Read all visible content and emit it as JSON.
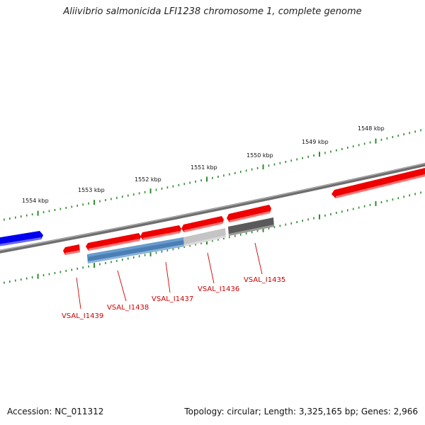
{
  "title": "Aliivibrio salmonicida LFI1238 chromosome 1, complete genome",
  "footer": {
    "accession": "Accession: NC_011312",
    "summary": "Topology: circular; Length: 3,325,165 bp; Genes: 2,966"
  },
  "ruler": {
    "labels": [
      "1554 kbp",
      "1553 kbp",
      "1552 kbp",
      "1551 kbp",
      "1550 kbp",
      "1549 kbp",
      "1548 kbp"
    ]
  },
  "genes": {
    "labels": [
      "VSAL_I1439",
      "VSAL_I1438",
      "VSAL_I1437",
      "VSAL_I1436",
      "VSAL_I1435"
    ]
  },
  "colors": {
    "backbone": "#808080",
    "tick": "#2e8b2e",
    "gene_red": "#ff0000",
    "gene_blue": "#0000ff",
    "steel_blue": "#4a7fb5",
    "light_gray": "#c0c0c0",
    "dark_gray": "#666666",
    "label_red": "#cc0000"
  }
}
